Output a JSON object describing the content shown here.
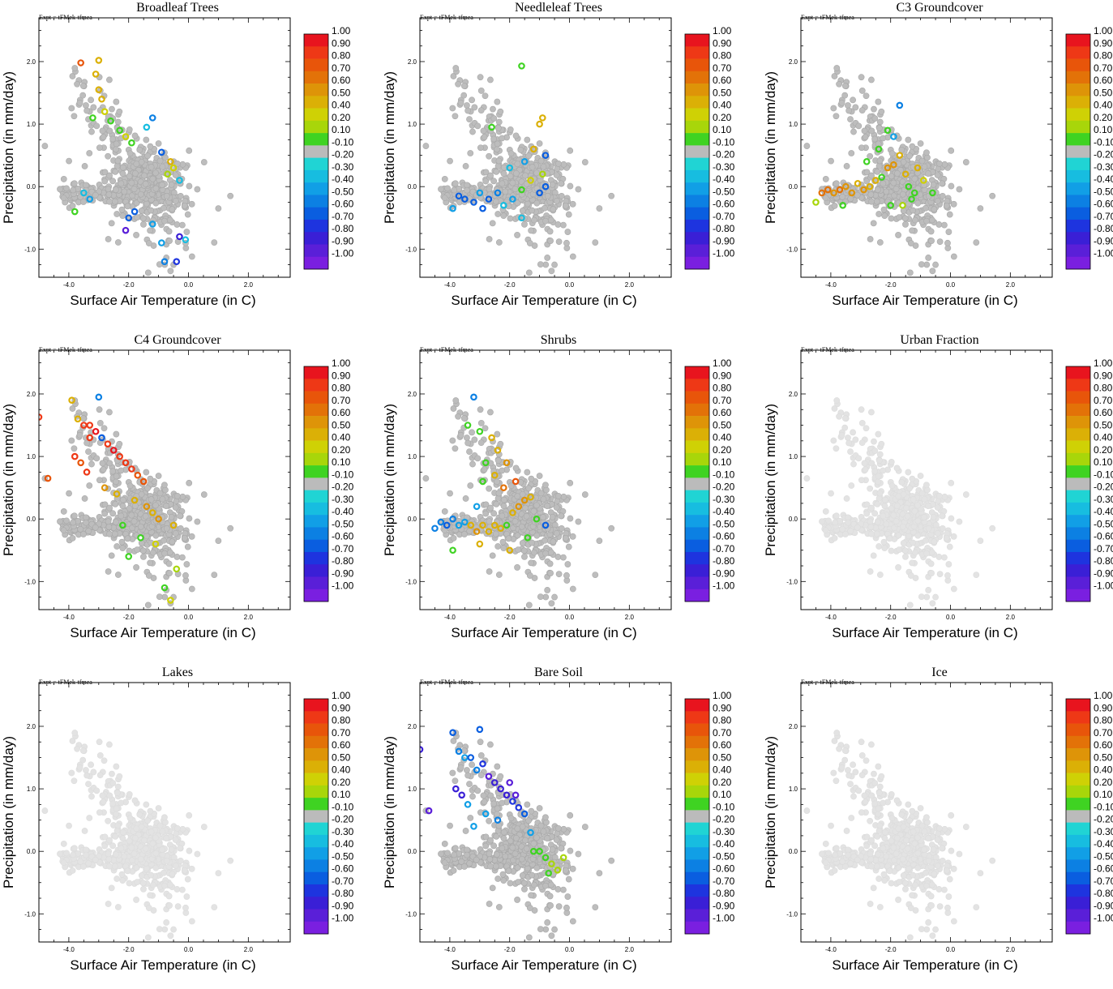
{
  "figure": {
    "expt_label": "Expt = tFMek-tfmea",
    "colorbar": {
      "labels": [
        "1.00",
        "0.90",
        "0.80",
        "0.70",
        "0.60",
        "0.50",
        "0.40",
        "0.20",
        "0.10",
        "-0.10",
        "-0.20",
        "-0.30",
        "-0.40",
        "-0.50",
        "-0.60",
        "-0.70",
        "-0.80",
        "-0.90",
        "-1.00"
      ],
      "colors": [
        "#e8141e",
        "#ee3816",
        "#e8550a",
        "#e37208",
        "#de9408",
        "#dbb006",
        "#cfd105",
        "#a8d60a",
        "#3fd322",
        "#bbbbbb",
        "#20d4d4",
        "#17bde0",
        "#119fe6",
        "#0c80e3",
        "#0a5ee0",
        "#1e34df",
        "#3a1fd6",
        "#5a1fd8",
        "#7a1fe0"
      ]
    }
  },
  "chart_data": [
    {
      "type": "scatter",
      "title": "Broadleaf Trees",
      "xlabel": "Surface Air Temperature (in C)",
      "ylabel": "Precipitation (in mm/day)",
      "xlim": [
        -5.0,
        3.4
      ],
      "ylim": [
        -1.45,
        2.7
      ],
      "xticks": [
        "-4.0",
        "-2.0",
        "0.0",
        "2.0"
      ],
      "yticks": [
        "2.0",
        "1.0",
        "0.0",
        "-1.0"
      ],
      "colorbar_range": [
        -1.0,
        1.0
      ],
      "highlight": [
        [
          -3.6,
          1.98,
          0.8
        ],
        [
          -3.0,
          2.02,
          0.5
        ],
        [
          -3.1,
          1.8,
          0.45
        ],
        [
          -3.0,
          1.55,
          0.5
        ],
        [
          -2.9,
          1.4,
          0.45
        ],
        [
          -2.8,
          1.2,
          0.35
        ],
        [
          -3.2,
          1.1,
          0.15
        ],
        [
          -2.6,
          1.05,
          0.12
        ],
        [
          -2.3,
          0.9,
          0.1
        ],
        [
          -2.1,
          0.8,
          0.3
        ],
        [
          -1.9,
          0.7,
          0.15
        ],
        [
          -1.2,
          1.1,
          -0.4
        ],
        [
          -1.4,
          0.95,
          -0.25
        ],
        [
          -0.9,
          0.55,
          -0.5
        ],
        [
          -0.6,
          0.4,
          0.4
        ],
        [
          -0.5,
          0.3,
          0.35
        ],
        [
          -0.7,
          0.2,
          0.25
        ],
        [
          -0.3,
          0.1,
          -0.2
        ],
        [
          -3.5,
          -0.1,
          -0.2
        ],
        [
          -3.3,
          -0.2,
          -0.3
        ],
        [
          -3.8,
          -0.4,
          0.15
        ],
        [
          -2.0,
          -0.5,
          -0.6
        ],
        [
          -1.8,
          -0.4,
          -0.5
        ],
        [
          -2.1,
          -0.7,
          -0.85
        ],
        [
          -0.3,
          -0.8,
          -0.8
        ],
        [
          -0.1,
          -0.85,
          -0.25
        ],
        [
          -0.8,
          -1.2,
          -0.4
        ],
        [
          -0.4,
          -1.2,
          -0.7
        ],
        [
          -1.2,
          -0.6,
          -0.3
        ],
        [
          -0.9,
          -0.9,
          -0.35
        ]
      ]
    },
    {
      "type": "scatter",
      "title": "Needleleaf Trees",
      "xlabel": "Surface Air Temperature (in C)",
      "ylabel": "Precipitation (in mm/day)",
      "xlim": [
        -5.0,
        3.4
      ],
      "ylim": [
        -1.45,
        2.7
      ],
      "xticks": [
        "-4.0",
        "-2.0",
        "0.0",
        "2.0"
      ],
      "yticks": [
        "2.0",
        "1.0",
        "0.0",
        "-1.0"
      ],
      "colorbar_range": [
        -1.0,
        1.0
      ],
      "highlight": [
        [
          -1.6,
          1.93,
          0.1
        ],
        [
          -0.9,
          1.1,
          0.45
        ],
        [
          -1.0,
          1.0,
          0.5
        ],
        [
          -2.6,
          0.95,
          0.15
        ],
        [
          -1.2,
          0.6,
          0.4
        ],
        [
          -0.8,
          0.5,
          -0.5
        ],
        [
          -1.5,
          0.4,
          -0.3
        ],
        [
          -2.0,
          0.3,
          -0.25
        ],
        [
          -3.7,
          -0.15,
          -0.6
        ],
        [
          -3.5,
          -0.2,
          -0.55
        ],
        [
          -3.2,
          -0.25,
          -0.5
        ],
        [
          -3.0,
          -0.1,
          -0.3
        ],
        [
          -2.7,
          -0.2,
          -0.6
        ],
        [
          -2.4,
          -0.1,
          -0.4
        ],
        [
          -2.2,
          -0.3,
          -0.25
        ],
        [
          -1.9,
          -0.2,
          -0.35
        ],
        [
          -1.6,
          -0.05,
          0.15
        ],
        [
          -1.3,
          0.1,
          0.3
        ],
        [
          -1.0,
          -0.1,
          -0.6
        ],
        [
          -0.8,
          0.0,
          -0.5
        ],
        [
          -3.9,
          -0.35,
          -0.3
        ],
        [
          -2.9,
          -0.35,
          -0.55
        ],
        [
          -1.6,
          -0.5,
          -0.25
        ],
        [
          -0.9,
          0.2,
          0.2
        ]
      ]
    },
    {
      "type": "scatter",
      "title": "C3 Groundcover",
      "xlabel": "Surface Air Temperature (in C)",
      "ylabel": "Precipitation (in mm/day)",
      "xlim": [
        -5.0,
        3.4
      ],
      "ylim": [
        -1.45,
        2.7
      ],
      "xticks": [
        "-4.0",
        "-2.0",
        "0.0",
        "2.0"
      ],
      "yticks": [
        "2.0",
        "1.0",
        "0.0",
        "-1.0"
      ],
      "colorbar_range": [
        -1.0,
        1.0
      ],
      "highlight": [
        [
          -4.3,
          -0.1,
          0.65
        ],
        [
          -4.1,
          -0.05,
          0.7
        ],
        [
          -3.9,
          -0.1,
          0.6
        ],
        [
          -3.7,
          -0.05,
          0.65
        ],
        [
          -3.5,
          0.0,
          0.55
        ],
        [
          -3.3,
          -0.1,
          0.6
        ],
        [
          -3.1,
          0.05,
          0.5
        ],
        [
          -2.9,
          -0.05,
          0.55
        ],
        [
          -2.7,
          0.0,
          0.45
        ],
        [
          -2.5,
          0.1,
          0.5
        ],
        [
          -2.3,
          0.15,
          0.15
        ],
        [
          -2.1,
          0.3,
          0.6
        ],
        [
          -1.9,
          0.35,
          0.55
        ],
        [
          -1.7,
          0.5,
          0.45
        ],
        [
          -1.5,
          0.2,
          0.5
        ],
        [
          -1.4,
          0.0,
          0.15
        ],
        [
          -1.2,
          -0.1,
          0.1
        ],
        [
          -2.0,
          -0.3,
          0.15
        ],
        [
          -1.6,
          -0.3,
          0.2
        ],
        [
          -4.5,
          -0.25,
          0.2
        ],
        [
          -3.6,
          -0.3,
          0.1
        ],
        [
          -1.9,
          0.8,
          -0.3
        ],
        [
          -1.7,
          1.3,
          -0.4
        ],
        [
          -2.1,
          0.9,
          0.1
        ],
        [
          -2.4,
          0.6,
          0.1
        ],
        [
          -1.1,
          0.3,
          0.5
        ],
        [
          -0.9,
          0.1,
          0.35
        ],
        [
          -1.3,
          -0.2,
          0.15
        ],
        [
          -2.8,
          0.4,
          0.1
        ],
        [
          -0.6,
          -0.1,
          0.1
        ]
      ]
    },
    {
      "type": "scatter",
      "title": "C4 Groundcover",
      "xlabel": "Surface Air Temperature (in C)",
      "ylabel": "Precipitation (in mm/day)",
      "xlim": [
        -5.0,
        3.4
      ],
      "ylim": [
        -1.45,
        2.7
      ],
      "xticks": [
        "-4.0",
        "-2.0",
        "0.0",
        "2.0"
      ],
      "yticks": [
        "2.0",
        "1.0",
        "0.0",
        "-1.0"
      ],
      "colorbar_range": [
        -1.0,
        1.0
      ],
      "highlight": [
        [
          -5.0,
          1.63,
          0.85
        ],
        [
          -4.7,
          0.65,
          0.75
        ],
        [
          -3.9,
          1.9,
          0.4
        ],
        [
          -3.7,
          1.6,
          0.5
        ],
        [
          -3.5,
          1.5,
          0.85
        ],
        [
          -3.3,
          1.5,
          0.9
        ],
        [
          -3.1,
          1.4,
          0.95
        ],
        [
          -3.3,
          1.3,
          0.9
        ],
        [
          -2.9,
          1.3,
          -0.5
        ],
        [
          -2.7,
          1.2,
          0.9
        ],
        [
          -2.5,
          1.1,
          0.95
        ],
        [
          -2.3,
          1.0,
          0.9
        ],
        [
          -2.1,
          0.9,
          0.85
        ],
        [
          -1.9,
          0.8,
          0.9
        ],
        [
          -1.7,
          0.7,
          0.75
        ],
        [
          -1.5,
          0.6,
          0.8
        ],
        [
          -3.8,
          1.0,
          0.9
        ],
        [
          -3.6,
          0.9,
          0.8
        ],
        [
          -3.4,
          0.75,
          0.85
        ],
        [
          -3.0,
          1.95,
          -0.4
        ],
        [
          -2.8,
          0.5,
          0.6
        ],
        [
          -2.4,
          0.4,
          0.45
        ],
        [
          -1.8,
          0.3,
          0.5
        ],
        [
          -1.4,
          0.2,
          0.55
        ],
        [
          -1.2,
          0.1,
          0.45
        ],
        [
          -1.0,
          0.0,
          0.6
        ],
        [
          -2.2,
          -0.1,
          0.1
        ],
        [
          -1.6,
          -0.3,
          0.15
        ],
        [
          -2.0,
          -0.6,
          0.1
        ],
        [
          -0.8,
          -1.1,
          0.15
        ],
        [
          -0.4,
          -0.8,
          0.2
        ],
        [
          -0.5,
          -0.1,
          0.4
        ],
        [
          -1.1,
          -0.4,
          0.35
        ],
        [
          -0.6,
          -1.3,
          0.3
        ]
      ]
    },
    {
      "type": "scatter",
      "title": "Shrubs",
      "xlabel": "Surface Air Temperature (in C)",
      "ylabel": "Precipitation (in mm/day)",
      "xlim": [
        -5.0,
        3.4
      ],
      "ylim": [
        -1.45,
        2.7
      ],
      "xticks": [
        "-4.0",
        "-2.0",
        "0.0",
        "2.0"
      ],
      "yticks": [
        "2.0",
        "1.0",
        "0.0",
        "-1.0"
      ],
      "colorbar_range": [
        -1.0,
        1.0
      ],
      "highlight": [
        [
          -4.5,
          -0.15,
          -0.4
        ],
        [
          -4.3,
          -0.05,
          -0.45
        ],
        [
          -4.1,
          -0.1,
          -0.5
        ],
        [
          -3.9,
          0.0,
          -0.4
        ],
        [
          -3.7,
          -0.1,
          -0.35
        ],
        [
          -3.5,
          -0.05,
          -0.3
        ],
        [
          -3.3,
          -0.1,
          0.5
        ],
        [
          -3.1,
          -0.2,
          0.55
        ],
        [
          -2.9,
          -0.1,
          0.45
        ],
        [
          -2.7,
          -0.2,
          0.4
        ],
        [
          -2.5,
          -0.1,
          0.5
        ],
        [
          -2.3,
          -0.15,
          0.45
        ],
        [
          -2.1,
          -0.1,
          0.15
        ],
        [
          -1.9,
          0.1,
          0.5
        ],
        [
          -1.7,
          0.2,
          0.55
        ],
        [
          -1.5,
          0.3,
          0.6
        ],
        [
          -1.3,
          0.35,
          0.5
        ],
        [
          -1.1,
          0.0,
          0.15
        ],
        [
          -3.4,
          1.5,
          0.15
        ],
        [
          -3.0,
          1.4,
          0.1
        ],
        [
          -2.6,
          1.3,
          0.4
        ],
        [
          -2.4,
          1.1,
          0.45
        ],
        [
          -2.8,
          0.9,
          0.1
        ],
        [
          -2.5,
          0.7,
          0.5
        ],
        [
          -2.9,
          0.6,
          0.15
        ],
        [
          -3.1,
          0.2,
          -0.3
        ],
        [
          -2.2,
          0.5,
          0.7
        ],
        [
          -1.8,
          0.6,
          0.75
        ],
        [
          -3.9,
          -0.5,
          0.15
        ],
        [
          -3.0,
          -0.4,
          0.5
        ],
        [
          -2.0,
          -0.5,
          0.45
        ],
        [
          -1.4,
          -0.3,
          0.15
        ],
        [
          -0.8,
          -0.1,
          -0.6
        ],
        [
          -3.2,
          1.95,
          -0.4
        ],
        [
          -2.1,
          0.9,
          0.55
        ]
      ]
    },
    {
      "type": "scatter",
      "title": "Urban Fraction",
      "xlabel": "Surface Air Temperature (in C)",
      "ylabel": "Precipitation (in mm/day)",
      "xlim": [
        -5.0,
        3.4
      ],
      "ylim": [
        -1.45,
        2.7
      ],
      "xticks": [
        "-4.0",
        "-2.0",
        "0.0",
        "2.0"
      ],
      "yticks": [
        "2.0",
        "1.0",
        "0.0",
        "-1.0"
      ],
      "colorbar_range": [
        -1.0,
        1.0
      ],
      "highlight": []
    },
    {
      "type": "scatter",
      "title": "Lakes",
      "xlabel": "Surface Air Temperature (in C)",
      "ylabel": "Precipitation (in mm/day)",
      "xlim": [
        -5.0,
        3.4
      ],
      "ylim": [
        -1.45,
        2.7
      ],
      "xticks": [
        "-4.0",
        "-2.0",
        "0.0",
        "2.0"
      ],
      "yticks": [
        "2.0",
        "1.0",
        "0.0",
        "-1.0"
      ],
      "colorbar_range": [
        -1.0,
        1.0
      ],
      "highlight": []
    },
    {
      "type": "scatter",
      "title": "Bare Soil",
      "xlabel": "Surface Air Temperature (in C)",
      "ylabel": "Precipitation (in mm/day)",
      "xlim": [
        -5.0,
        3.4
      ],
      "ylim": [
        -1.45,
        2.7
      ],
      "xticks": [
        "-4.0",
        "-2.0",
        "0.0",
        "2.0"
      ],
      "yticks": [
        "2.0",
        "1.0",
        "0.0",
        "-1.0"
      ],
      "colorbar_range": [
        -1.0,
        1.0
      ],
      "highlight": [
        [
          -5.0,
          1.63,
          -0.8
        ],
        [
          -4.7,
          0.65,
          -0.85
        ],
        [
          -3.9,
          1.9,
          -0.5
        ],
        [
          -3.7,
          1.6,
          -0.4
        ],
        [
          -3.5,
          1.5,
          -0.35
        ],
        [
          -3.3,
          1.5,
          -0.55
        ],
        [
          -3.1,
          1.3,
          -0.45
        ],
        [
          -2.9,
          1.4,
          -0.7
        ],
        [
          -2.7,
          1.2,
          -0.85
        ],
        [
          -2.5,
          1.1,
          -0.8
        ],
        [
          -2.3,
          1.0,
          -0.75
        ],
        [
          -2.1,
          0.9,
          -0.8
        ],
        [
          -1.9,
          0.8,
          -0.7
        ],
        [
          -1.7,
          0.7,
          -0.65
        ],
        [
          -1.5,
          0.6,
          -0.6
        ],
        [
          -3.8,
          1.0,
          -0.8
        ],
        [
          -3.6,
          0.9,
          -0.75
        ],
        [
          -3.4,
          0.75,
          -0.3
        ],
        [
          -3.0,
          1.95,
          -0.5
        ],
        [
          -2.8,
          0.6,
          -0.35
        ],
        [
          -2.4,
          0.5,
          -0.4
        ],
        [
          -1.3,
          0.3,
          -0.3
        ],
        [
          -1.8,
          0.9,
          -0.85
        ],
        [
          -2.0,
          1.1,
          -0.9
        ],
        [
          -3.2,
          0.4,
          -0.3
        ],
        [
          -1.0,
          0.0,
          0.15
        ],
        [
          -0.8,
          -0.1,
          0.15
        ],
        [
          -0.6,
          -0.2,
          0.2
        ],
        [
          -0.4,
          -0.3,
          0.25
        ],
        [
          -0.2,
          -0.1,
          0.2
        ],
        [
          -0.7,
          -0.35,
          0.15
        ],
        [
          -1.2,
          0.0,
          0.1
        ]
      ]
    },
    {
      "type": "scatter",
      "title": "Ice",
      "xlabel": "Surface Air Temperature (in C)",
      "ylabel": "Precipitation (in mm/day)",
      "xlim": [
        -5.0,
        3.4
      ],
      "ylim": [
        -1.45,
        2.7
      ],
      "xticks": [
        "-4.0",
        "-2.0",
        "0.0",
        "2.0"
      ],
      "yticks": [
        "2.0",
        "1.0",
        "0.0",
        "-1.0"
      ],
      "colorbar_range": [
        -1.0,
        1.0
      ],
      "highlight": []
    }
  ]
}
